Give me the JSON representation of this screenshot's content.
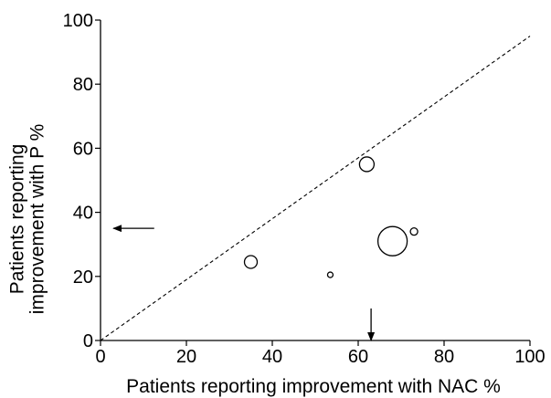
{
  "chart_data": {
    "type": "scatter",
    "title": "",
    "xlabel": "Patients reporting improvement with NAC  %",
    "ylabel_lines": [
      "Patients reporting",
      "improvement with P  %"
    ],
    "xlim": [
      0,
      100
    ],
    "ylim": [
      0,
      100
    ],
    "x_ticks": [
      "0",
      "20",
      "40",
      "60",
      "80",
      "100"
    ],
    "y_ticks": [
      "0",
      "20",
      "40",
      "60",
      "80",
      "100"
    ],
    "grid": false,
    "legend": "none",
    "reference_line": {
      "style": "dashed",
      "from": [
        0,
        0
      ],
      "to": [
        100,
        95
      ]
    },
    "series": [
      {
        "marker": "open-circle",
        "points": [
          {
            "x": 35,
            "y": 24.5,
            "size": 1.4
          },
          {
            "x": 53.5,
            "y": 20.5,
            "size": 0.6
          },
          {
            "x": 62,
            "y": 55,
            "size": 1.6
          },
          {
            "x": 68,
            "y": 31,
            "size": 3.2
          },
          {
            "x": 73,
            "y": 34,
            "size": 0.8
          }
        ]
      }
    ],
    "annotations": [
      {
        "type": "arrow",
        "direction": "left",
        "x": 12.5,
        "y": 35,
        "x_end": 3
      },
      {
        "type": "arrow",
        "direction": "down",
        "x": 63,
        "y": 10,
        "y_end": 0
      }
    ],
    "colors": {
      "stroke": "#000000",
      "background": "#ffffff"
    }
  }
}
